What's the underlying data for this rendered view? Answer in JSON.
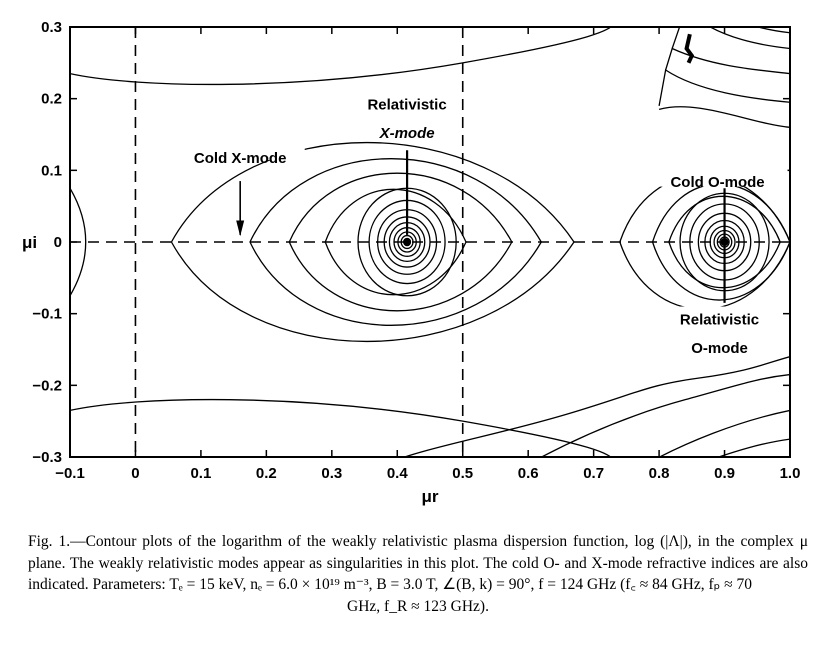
{
  "figure": {
    "caption_lines": [
      "Fig. 1.—Contour plots of the logarithm of the weakly relativistic plasma dispersion function,",
      "log (|Λ|), in the complex μ plane. The weakly relativistic modes appear as singularities in this",
      "plot. The cold O- and X-mode refractive indices are also indicated. Parameters: Tₑ = 15",
      "keV, nₑ = 6.0 × 10¹⁹ m⁻³, B = 3.0 T, ∠(B, k) = 90°, f = 124 GHz (f꜀ ≈ 84 GHz, fₚ ≈ 70",
      "GHz, f_R ≈ 123 GHz)."
    ]
  },
  "chart_data": {
    "type": "contour",
    "xlabel": "μr",
    "ylabel": "μi",
    "xlim": [
      -0.1,
      1.0
    ],
    "ylim": [
      -0.3,
      0.3
    ],
    "xticks": [
      "−0.1",
      "0",
      "0.1",
      "0.2",
      "0.3",
      "0.4",
      "0.5",
      "0.6",
      "0.7",
      "0.8",
      "0.9",
      "1.0"
    ],
    "xtick_values": [
      -0.1,
      0,
      0.1,
      0.2,
      0.3,
      0.4,
      0.5,
      0.6,
      0.7,
      0.8,
      0.9,
      1.0
    ],
    "yticks": [
      "−0.3",
      "−0.2",
      "−0.1",
      "0",
      "0.1",
      "0.2",
      "0.3"
    ],
    "ytick_values": [
      -0.3,
      -0.2,
      -0.1,
      0,
      0.1,
      0.2,
      0.3
    ],
    "dashed_lines": {
      "vertical_x": [
        0,
        0.5
      ],
      "horizontal_y": [
        0
      ]
    },
    "singularities": [
      {
        "label": "Relativistic X-mode",
        "x": 0.415,
        "y": 0
      },
      {
        "label": "Relativistic O-mode",
        "x": 0.9,
        "y": 0
      }
    ],
    "annotations": {
      "rel_x_line1": "Relativistic",
      "rel_x_line2": "X-mode",
      "cold_x": "Cold X-mode",
      "cold_o": "Cold O-mode",
      "rel_o_line1": "Relativistic",
      "rel_o_line2": "O-mode"
    },
    "cold_x_mode_mu": 0.16,
    "cold_o_mode_mu": 0.9,
    "contours": {
      "x_mode_rings_dx": [
        0.005,
        0.009,
        0.014,
        0.02,
        0.027,
        0.035,
        0.045,
        0.058,
        0.075
      ],
      "x_mode_rings_dy": [
        0.005,
        0.009,
        0.014,
        0.02,
        0.027,
        0.035,
        0.045,
        0.058,
        0.075
      ],
      "o_mode_rings_dx": [
        0.004,
        0.007,
        0.011,
        0.016,
        0.022,
        0.03,
        0.04,
        0.053,
        0.068
      ],
      "o_mode_rings_dy": [
        0.004,
        0.007,
        0.011,
        0.016,
        0.022,
        0.03,
        0.04,
        0.053,
        0.068
      ],
      "x_mode_outer": [
        {
          "x0": 0.29,
          "x1": 0.505,
          "dy": 0.098
        },
        {
          "x0": 0.235,
          "x1": 0.575,
          "dy": 0.128
        },
        {
          "x0": 0.175,
          "x1": 0.62,
          "dy": 0.155
        },
        {
          "x0": 0.055,
          "x1": 0.67,
          "dy": 0.185
        }
      ],
      "o_mode_outer": [
        {
          "x0": 0.815,
          "x1": 0.985,
          "dy": 0.085
        },
        {
          "x0": 0.79,
          "x1": 1.0,
          "dy": 0.108
        },
        {
          "x0": 0.74,
          "x1": 1.0,
          "dy": 0.125
        }
      ],
      "left_arc": {
        "tip": -0.052,
        "dy": 0.075
      }
    }
  }
}
